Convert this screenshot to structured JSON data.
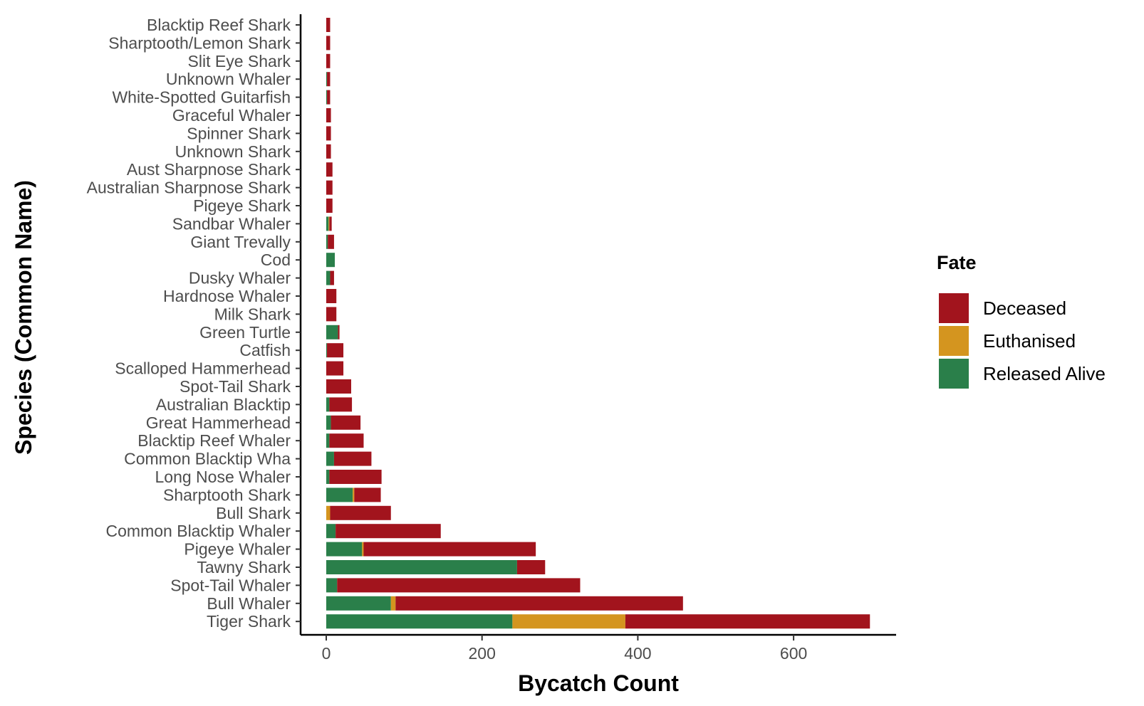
{
  "chart_data": {
    "type": "bar",
    "orientation": "horizontal",
    "stacked": true,
    "xlabel": "Bycatch Count",
    "ylabel": "Species (Common Name)",
    "xlim": [
      -40,
      730
    ],
    "xticks": [
      0,
      200,
      400,
      600
    ],
    "grid": false,
    "legend": {
      "title": "Fate",
      "position": "right"
    },
    "categories": [
      "Blacktip Reef Shark",
      "Sharptooth/Lemon Shark",
      "Slit Eye Shark",
      "Unknown Whaler",
      "White-Spotted Guitarfish",
      "Graceful Whaler",
      "Spinner Shark",
      "Unknown Shark",
      "Aust Sharpnose Shark",
      "Australian Sharpnose Shark",
      "Pigeye Shark",
      "Sandbar Whaler",
      "Giant Trevally",
      "Cod",
      "Dusky Whaler",
      "Hardnose Whaler",
      "Milk Shark",
      "Green Turtle",
      "Catfish",
      "Scalloped Hammerhead",
      "Spot-Tail Shark",
      "Australian Blacktip",
      "Great Hammerhead",
      "Blacktip Reef Whaler",
      "Common Blacktip Wha",
      "Long Nose Whaler",
      "Sharptooth Shark",
      "Bull Shark",
      "Common Blacktip Whaler",
      "Pigeye Whaler",
      "Tawny Shark",
      "Spot-Tail Whaler",
      "Bull Whaler",
      "Tiger Shark"
    ],
    "series": [
      {
        "name": "Released Alive",
        "color": "#2a7f4a",
        "values": [
          0,
          0,
          0,
          1,
          1,
          0,
          0,
          0,
          0,
          0,
          0,
          3,
          2,
          11,
          5,
          0,
          0,
          15,
          1,
          0,
          0,
          4,
          6,
          4,
          10,
          4,
          34,
          0,
          12,
          46,
          245,
          14,
          83,
          239
        ]
      },
      {
        "name": "Euthanised",
        "color": "#d4951f",
        "values": [
          0,
          0,
          0,
          0,
          0,
          0,
          0,
          0,
          0,
          0,
          0,
          1,
          0,
          0,
          0,
          0,
          0,
          0,
          0,
          0,
          0,
          0,
          0,
          0,
          0,
          0,
          2,
          5,
          0,
          2,
          0,
          0,
          6,
          145
        ]
      },
      {
        "name": "Deceased",
        "color": "#a2141d",
        "values": [
          5,
          5,
          5,
          4,
          4,
          6,
          6,
          6,
          8,
          8,
          8,
          3,
          8,
          0,
          5,
          13,
          13,
          2,
          21,
          22,
          32,
          29,
          38,
          44,
          48,
          67,
          34,
          78,
          135,
          221,
          36,
          312,
          369,
          314
        ]
      }
    ],
    "legend_order": [
      "Deceased",
      "Euthanised",
      "Released Alive"
    ]
  }
}
